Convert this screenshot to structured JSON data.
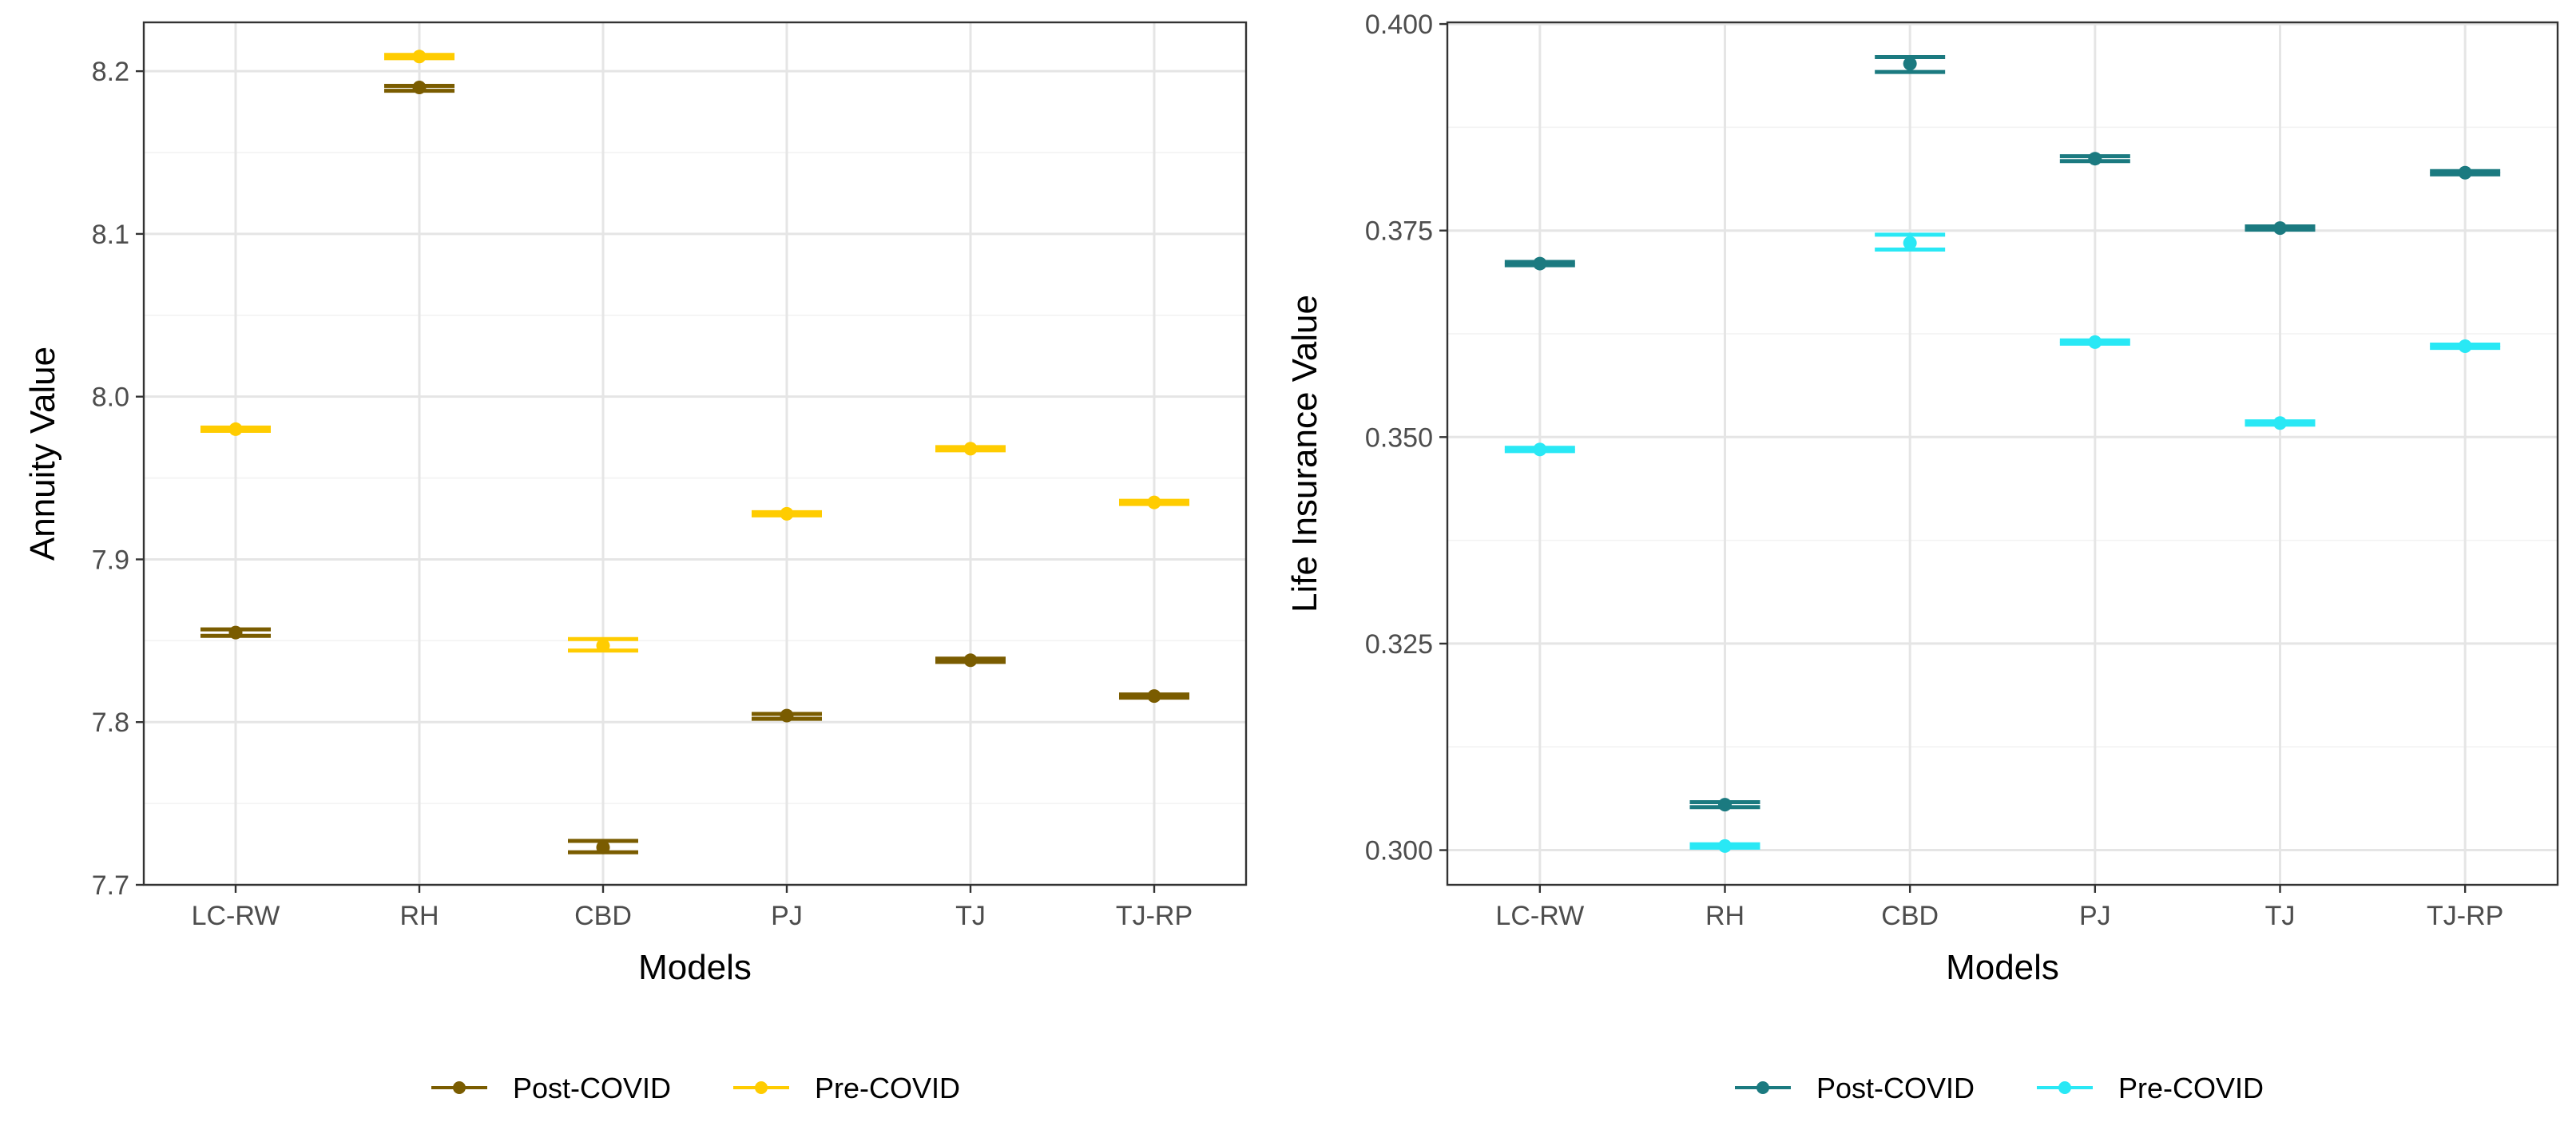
{
  "chart_data": [
    {
      "type": "errorbar",
      "xlabel": "Models",
      "ylabel": "Annuity Value",
      "categories": [
        "LC-RW",
        "RH",
        "CBD",
        "PJ",
        "TJ",
        "TJ-RP"
      ],
      "ylim": [
        7.7,
        8.23
      ],
      "yticks": [
        7.7,
        7.8,
        7.9,
        8.0,
        8.1,
        8.2
      ],
      "ytick_labels": [
        "7.7",
        "7.8",
        "7.9",
        "8.0",
        "8.1",
        "8.2"
      ],
      "grid": true,
      "legend_position": "bottom",
      "series": [
        {
          "name": "Post-COVID",
          "color": "#7a5c00",
          "values": [
            7.855,
            8.19,
            7.723,
            7.804,
            7.838,
            7.816
          ],
          "lower": [
            7.853,
            8.188,
            7.72,
            7.802,
            7.837,
            7.815
          ],
          "upper": [
            7.857,
            8.191,
            7.727,
            7.805,
            7.839,
            7.817
          ]
        },
        {
          "name": "Pre-COVID",
          "color": "#ffcc00",
          "values": [
            7.98,
            8.209,
            7.847,
            7.928,
            7.968,
            7.935
          ],
          "lower": [
            7.979,
            8.208,
            7.844,
            7.927,
            7.967,
            7.934
          ],
          "upper": [
            7.981,
            8.21,
            7.851,
            7.929,
            7.969,
            7.936
          ]
        }
      ]
    },
    {
      "type": "errorbar",
      "xlabel": "Models",
      "ylabel": "Life Insurance Value",
      "categories": [
        "LC-RW",
        "RH",
        "CBD",
        "PJ",
        "TJ",
        "TJ-RP"
      ],
      "ylim": [
        0.2958,
        0.4002
      ],
      "yticks": [
        0.3,
        0.325,
        0.35,
        0.375,
        0.4
      ],
      "ytick_labels": [
        "0.300",
        "0.325",
        "0.350",
        "0.375",
        "0.400"
      ],
      "grid": true,
      "legend_position": "bottom",
      "series": [
        {
          "name": "Post-COVID",
          "color": "#1b7a80",
          "values": [
            0.371,
            0.3055,
            0.3952,
            0.3837,
            0.3753,
            0.382
          ],
          "lower": [
            0.3708,
            0.3052,
            0.3942,
            0.3834,
            0.3751,
            0.3818
          ],
          "upper": [
            0.3712,
            0.3058,
            0.396,
            0.384,
            0.3755,
            0.3822
          ]
        },
        {
          "name": "Pre-COVID",
          "color": "#29e8f5",
          "values": [
            0.3485,
            0.3005,
            0.3735,
            0.3615,
            0.3517,
            0.361
          ],
          "lower": [
            0.3483,
            0.3003,
            0.3727,
            0.3613,
            0.3515,
            0.3608
          ],
          "upper": [
            0.3487,
            0.3007,
            0.3745,
            0.3617,
            0.3519,
            0.3612
          ]
        }
      ]
    }
  ]
}
